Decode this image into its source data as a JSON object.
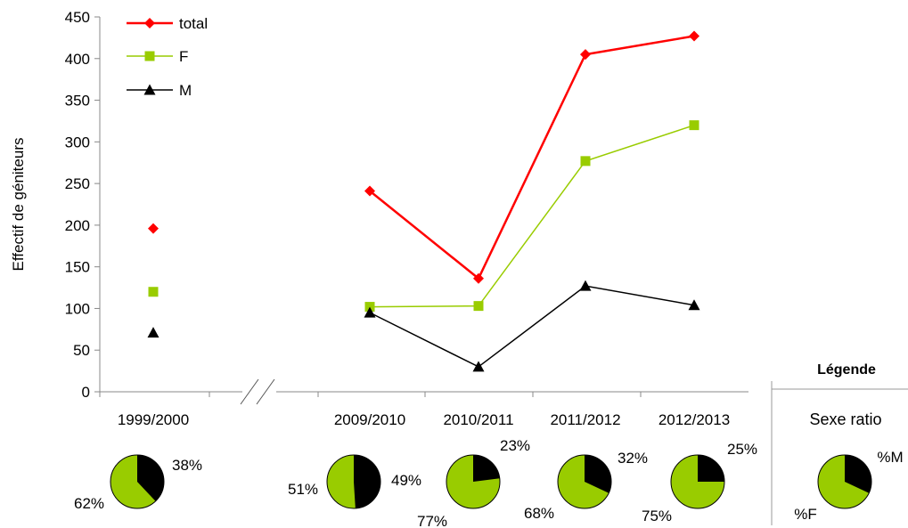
{
  "chart_data": {
    "type": "line",
    "ylabel": "Effectif de géniteurs",
    "ylim": [
      0,
      450
    ],
    "yticks": [
      0,
      50,
      100,
      150,
      200,
      250,
      300,
      350,
      400,
      450
    ],
    "categories": [
      "1999/2000",
      "2009/2010",
      "2010/2011",
      "2011/2012",
      "2012/2013"
    ],
    "axis_break": "between 1999/2000 and 2009/2010",
    "grid": false,
    "legend_position": "top-left",
    "series": [
      {
        "name": "total",
        "color": "#ff0000",
        "marker": "diamond",
        "values": [
          196,
          241,
          136,
          405,
          427
        ]
      },
      {
        "name": "F",
        "color": "#99cc00",
        "marker": "square",
        "values": [
          120,
          102,
          103,
          277,
          320
        ]
      },
      {
        "name": "M",
        "color": "#000000",
        "marker": "triangle",
        "values": [
          71,
          95,
          30,
          127,
          104
        ]
      }
    ],
    "sex_ratio_pies": [
      {
        "category": "1999/2000",
        "pct_F": 62,
        "pct_M": 38,
        "label_F": "62%",
        "label_M": "38%"
      },
      {
        "category": "2009/2010",
        "pct_F": 51,
        "pct_M": 49,
        "label_F": "51%",
        "label_M": "49%"
      },
      {
        "category": "2010/2011",
        "pct_F": 77,
        "pct_M": 23,
        "label_F": "77%",
        "label_M": "23%"
      },
      {
        "category": "2011/2012",
        "pct_F": 68,
        "pct_M": 32,
        "label_F": "68%",
        "label_M": "32%"
      },
      {
        "category": "2012/2013",
        "pct_F": 75,
        "pct_M": 25,
        "label_F": "75%",
        "label_M": "25%"
      }
    ],
    "legend_panel": {
      "title": "Légende",
      "subtitle": "Sexe ratio",
      "pie": {
        "pct_F": 68,
        "pct_M": 32,
        "label_F": "%F",
        "label_M": "%M"
      }
    },
    "colors": {
      "female": "#99cc00",
      "male": "#000000",
      "total": "#ff0000"
    }
  }
}
